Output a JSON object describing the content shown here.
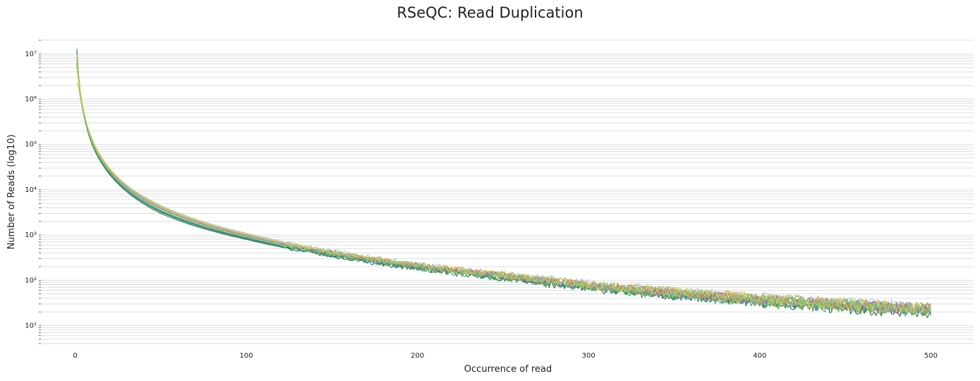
{
  "chart_data": {
    "type": "line",
    "title": "RSeQC: Read Duplication",
    "xlabel": "Occurrence of read",
    "ylabel": "Number of Reads (log10)",
    "x_scale": "linear",
    "y_scale": "log",
    "xlim": [
      -20,
      525
    ],
    "ylim": [
      4,
      20000000
    ],
    "x_ticks": [
      0,
      100,
      200,
      300,
      400,
      500
    ],
    "y_ticks": [
      {
        "value": 10,
        "label": "10¹"
      },
      {
        "value": 100,
        "label": "10²"
      },
      {
        "value": 1000,
        "label": "10³"
      },
      {
        "value": 10000,
        "label": "10⁴"
      },
      {
        "value": 100000,
        "label": "10⁵"
      },
      {
        "value": 1000000,
        "label": "10⁶"
      },
      {
        "value": 10000000,
        "label": "10⁷"
      }
    ],
    "grid": true,
    "legend": "none",
    "series": [
      {
        "color": "#1f6f6f",
        "anchors": [
          [
            1,
            13000000
          ],
          [
            2,
            3500000
          ],
          [
            5,
            520000
          ],
          [
            10,
            110000
          ],
          [
            20,
            24000
          ],
          [
            50,
            3300
          ],
          [
            100,
            850
          ],
          [
            150,
            360
          ],
          [
            200,
            190
          ],
          [
            250,
            115
          ],
          [
            300,
            70
          ],
          [
            350,
            48
          ],
          [
            400,
            35
          ],
          [
            450,
            27
          ],
          [
            500,
            21
          ]
        ]
      },
      {
        "color": "#2b8a8a",
        "anchors": [
          [
            1,
            11000000
          ],
          [
            2,
            3200000
          ],
          [
            5,
            500000
          ],
          [
            10,
            105000
          ],
          [
            20,
            23500
          ],
          [
            50,
            3400
          ],
          [
            100,
            880
          ],
          [
            150,
            380
          ],
          [
            200,
            200
          ],
          [
            250,
            120
          ],
          [
            300,
            74
          ],
          [
            350,
            50
          ],
          [
            400,
            36
          ],
          [
            450,
            28
          ],
          [
            500,
            22
          ]
        ]
      },
      {
        "color": "#1e5e3a",
        "anchors": [
          [
            1,
            6000000
          ],
          [
            2,
            2600000
          ],
          [
            5,
            460000
          ],
          [
            10,
            98000
          ],
          [
            20,
            22000
          ],
          [
            50,
            3000
          ],
          [
            100,
            800
          ],
          [
            150,
            340
          ],
          [
            200,
            180
          ],
          [
            250,
            108
          ],
          [
            300,
            66
          ],
          [
            350,
            45
          ],
          [
            400,
            32
          ],
          [
            450,
            24
          ],
          [
            500,
            19
          ]
        ]
      },
      {
        "color": "#2a9d5a",
        "anchors": [
          [
            1,
            7500000
          ],
          [
            2,
            2800000
          ],
          [
            5,
            480000
          ],
          [
            10,
            102000
          ],
          [
            20,
            23000
          ],
          [
            50,
            3200
          ],
          [
            100,
            830
          ],
          [
            150,
            355
          ],
          [
            200,
            185
          ],
          [
            250,
            112
          ],
          [
            300,
            68
          ],
          [
            350,
            46
          ],
          [
            400,
            33
          ],
          [
            450,
            25
          ],
          [
            500,
            20
          ]
        ]
      },
      {
        "color": "#e0c030",
        "anchors": [
          [
            1,
            2300000
          ],
          [
            2,
            1800000
          ],
          [
            5,
            520000
          ],
          [
            10,
            130000
          ],
          [
            20,
            30000
          ],
          [
            50,
            4300
          ],
          [
            100,
            1050
          ],
          [
            150,
            420
          ],
          [
            200,
            220
          ],
          [
            250,
            135
          ],
          [
            300,
            82
          ],
          [
            350,
            57
          ],
          [
            400,
            40
          ],
          [
            450,
            31
          ],
          [
            500,
            25
          ]
        ]
      },
      {
        "color": "#d4b84a",
        "anchors": [
          [
            1,
            5000000
          ],
          [
            2,
            2500000
          ],
          [
            5,
            500000
          ],
          [
            10,
            118000
          ],
          [
            20,
            27000
          ],
          [
            50,
            3900
          ],
          [
            100,
            980
          ],
          [
            150,
            400
          ],
          [
            200,
            210
          ],
          [
            250,
            128
          ],
          [
            300,
            78
          ],
          [
            350,
            53
          ],
          [
            400,
            37
          ],
          [
            450,
            29
          ],
          [
            500,
            23
          ]
        ]
      },
      {
        "color": "#8ec8e8",
        "anchors": [
          [
            1,
            9000000
          ],
          [
            2,
            3000000
          ],
          [
            5,
            560000
          ],
          [
            10,
            125000
          ],
          [
            20,
            29000
          ],
          [
            50,
            4500
          ],
          [
            100,
            1100
          ],
          [
            150,
            450
          ],
          [
            200,
            230
          ],
          [
            250,
            140
          ],
          [
            300,
            86
          ],
          [
            350,
            58
          ],
          [
            400,
            41
          ],
          [
            450,
            32
          ],
          [
            500,
            26
          ]
        ]
      },
      {
        "color": "#5b8fd8",
        "anchors": [
          [
            1,
            8000000
          ],
          [
            2,
            2900000
          ],
          [
            5,
            500000
          ],
          [
            10,
            112000
          ],
          [
            20,
            26000
          ],
          [
            50,
            3800
          ],
          [
            100,
            950
          ],
          [
            150,
            400
          ],
          [
            200,
            205
          ],
          [
            250,
            125
          ],
          [
            300,
            77
          ],
          [
            350,
            52
          ],
          [
            400,
            37
          ],
          [
            450,
            29
          ],
          [
            500,
            23
          ]
        ]
      },
      {
        "color": "#e05050",
        "anchors": [
          [
            1,
            7000000
          ],
          [
            2,
            2800000
          ],
          [
            5,
            510000
          ],
          [
            10,
            115000
          ],
          [
            20,
            26500
          ],
          [
            50,
            3850
          ],
          [
            100,
            960
          ],
          [
            150,
            405
          ],
          [
            200,
            210
          ],
          [
            250,
            127
          ],
          [
            300,
            78
          ],
          [
            350,
            53
          ],
          [
            400,
            38
          ],
          [
            450,
            29
          ],
          [
            500,
            23
          ]
        ]
      },
      {
        "color": "#f08a40",
        "anchors": [
          [
            1,
            8500000
          ],
          [
            2,
            3000000
          ],
          [
            5,
            540000
          ],
          [
            10,
            122000
          ],
          [
            20,
            28500
          ],
          [
            50,
            4200
          ],
          [
            100,
            1030
          ],
          [
            150,
            430
          ],
          [
            200,
            222
          ],
          [
            250,
            134
          ],
          [
            300,
            82
          ],
          [
            350,
            56
          ],
          [
            400,
            40
          ],
          [
            450,
            31
          ],
          [
            500,
            25
          ]
        ]
      },
      {
        "color": "#a070d0",
        "anchors": [
          [
            1,
            7800000
          ],
          [
            2,
            2850000
          ],
          [
            5,
            505000
          ],
          [
            10,
            113000
          ],
          [
            20,
            26200
          ],
          [
            50,
            3820
          ],
          [
            100,
            955
          ],
          [
            150,
            402
          ],
          [
            200,
            208
          ],
          [
            250,
            126
          ],
          [
            300,
            77
          ],
          [
            350,
            52
          ],
          [
            400,
            37
          ],
          [
            450,
            29
          ],
          [
            500,
            23
          ]
        ]
      },
      {
        "color": "#70c060",
        "anchors": [
          [
            1,
            6500000
          ],
          [
            2,
            2700000
          ],
          [
            5,
            490000
          ],
          [
            10,
            108000
          ],
          [
            20,
            24500
          ],
          [
            50,
            3550
          ],
          [
            100,
            900
          ],
          [
            150,
            375
          ],
          [
            200,
            195
          ],
          [
            250,
            118
          ],
          [
            300,
            72
          ],
          [
            350,
            49
          ],
          [
            400,
            35
          ],
          [
            450,
            27
          ],
          [
            500,
            21
          ]
        ]
      },
      {
        "color": "#90e070",
        "anchors": [
          [
            1,
            9500000
          ],
          [
            2,
            3100000
          ],
          [
            5,
            530000
          ],
          [
            10,
            118000
          ],
          [
            20,
            27500
          ],
          [
            50,
            4000
          ],
          [
            100,
            1000
          ],
          [
            150,
            415
          ],
          [
            200,
            215
          ],
          [
            250,
            130
          ],
          [
            300,
            80
          ],
          [
            350,
            55
          ],
          [
            400,
            39
          ],
          [
            450,
            30
          ],
          [
            500,
            24
          ]
        ]
      },
      {
        "color": "#c0d050",
        "anchors": [
          [
            1,
            10000000
          ],
          [
            2,
            3150000
          ],
          [
            5,
            535000
          ],
          [
            10,
            120000
          ],
          [
            20,
            28000
          ],
          [
            50,
            4100
          ],
          [
            100,
            1010
          ],
          [
            150,
            420
          ],
          [
            200,
            218
          ],
          [
            250,
            132
          ],
          [
            300,
            81
          ],
          [
            350,
            55
          ],
          [
            400,
            39
          ],
          [
            450,
            30
          ],
          [
            500,
            24
          ]
        ]
      }
    ]
  }
}
